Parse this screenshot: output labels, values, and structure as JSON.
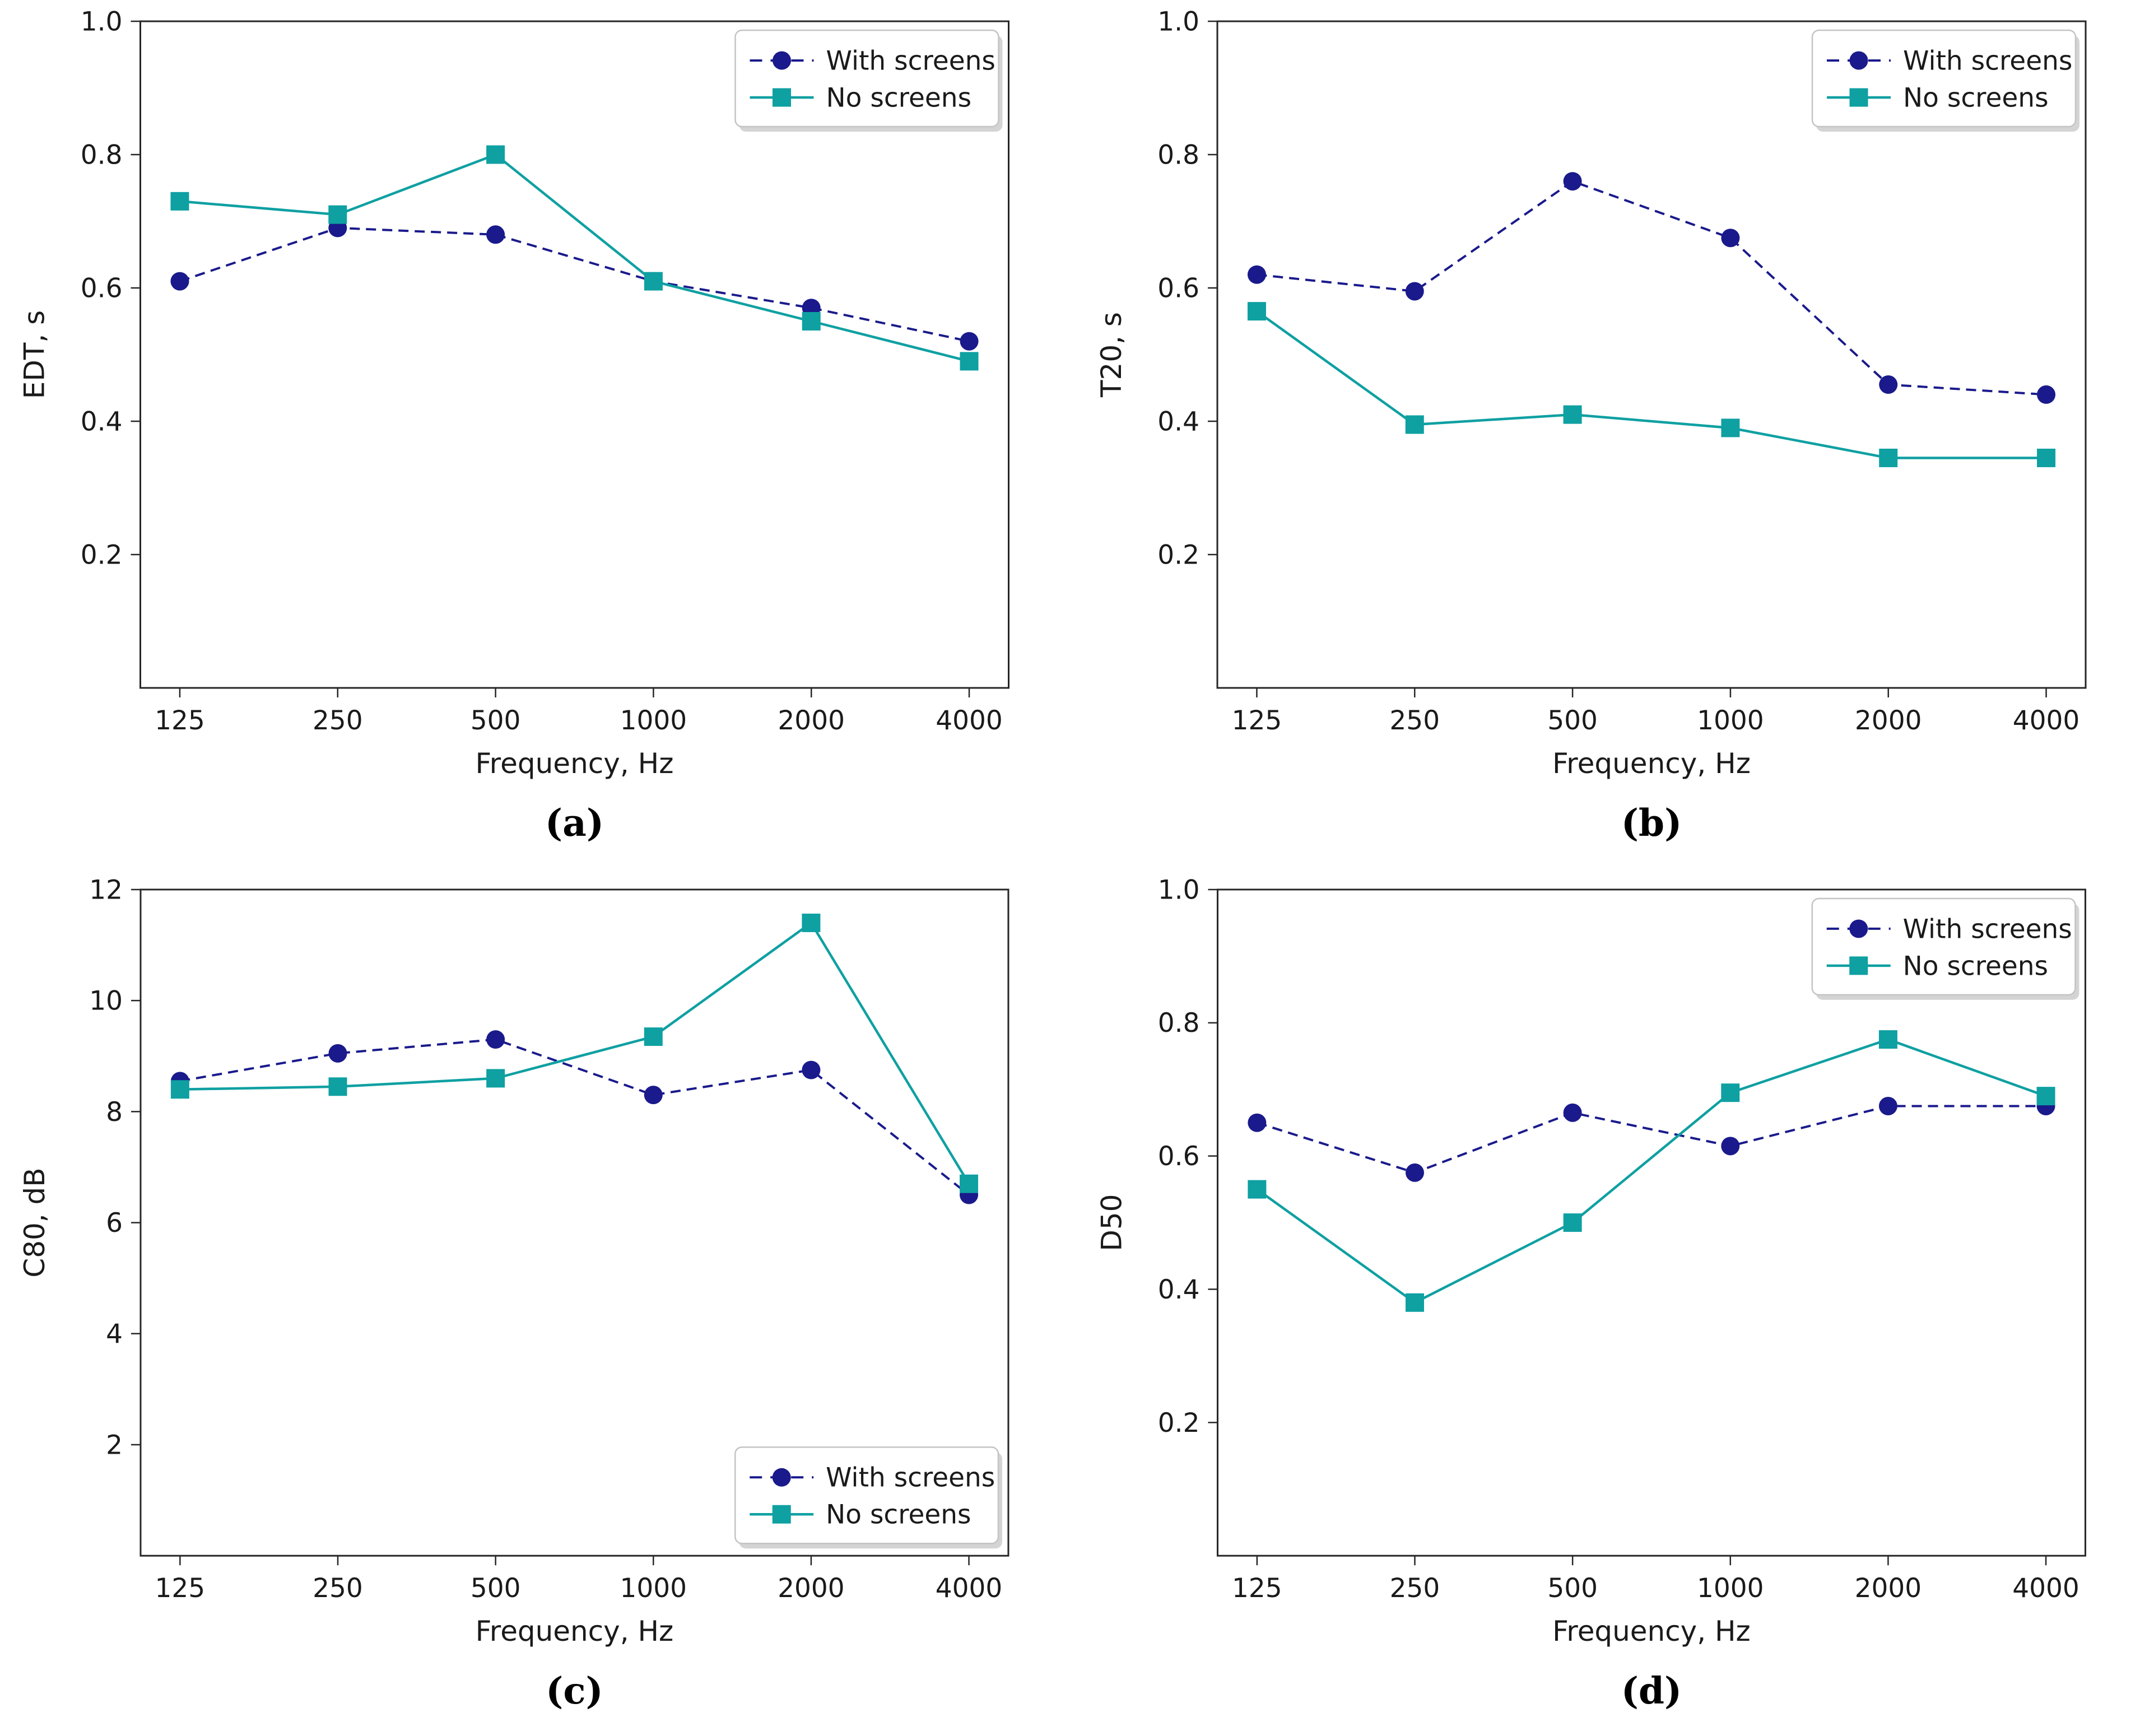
{
  "figure": {
    "background": "#ffffff",
    "description": "Four line charts comparing room-acoustic parameters with and without screens across octave-band frequencies"
  },
  "colors": {
    "with_screens": "#1a1a8c",
    "no_screens": "#0fa0a2",
    "axis": "#262626",
    "text": "#1a1a1a",
    "legend_border": "#c4c4c4",
    "legend_shadow": "#cccccc"
  },
  "legend_labels": {
    "with_screens": "With screens",
    "no_screens": "No screens"
  },
  "chart_data": [
    {
      "id": "a",
      "type": "line",
      "caption": "(a)",
      "xlabel": "Frequency, Hz",
      "ylabel": "EDT, s",
      "categories": [
        "125",
        "250",
        "500",
        "1000",
        "2000",
        "4000"
      ],
      "ylim": [
        0,
        1.0
      ],
      "yticks": [
        0.2,
        0.4,
        0.6,
        0.8,
        1.0
      ],
      "ytick_labels": [
        "0.2",
        "0.4",
        "0.6",
        "0.8",
        "1.0"
      ],
      "grid": false,
      "legend_position": "top-right",
      "series": [
        {
          "name": "With screens",
          "color_key": "with_screens",
          "line_style": "dashed",
          "marker": "circle",
          "values": [
            0.61,
            0.69,
            0.68,
            0.61,
            0.57,
            0.52
          ]
        },
        {
          "name": "No screens",
          "color_key": "no_screens",
          "line_style": "solid",
          "marker": "square",
          "values": [
            0.73,
            0.71,
            0.8,
            0.61,
            0.55,
            0.49
          ]
        }
      ]
    },
    {
      "id": "b",
      "type": "line",
      "caption": "(b)",
      "xlabel": "Frequency, Hz",
      "ylabel": "T20, s",
      "categories": [
        "125",
        "250",
        "500",
        "1000",
        "2000",
        "4000"
      ],
      "ylim": [
        0,
        1.0
      ],
      "yticks": [
        0.2,
        0.4,
        0.6,
        0.8,
        1.0
      ],
      "ytick_labels": [
        "0.2",
        "0.4",
        "0.6",
        "0.8",
        "1.0"
      ],
      "grid": false,
      "legend_position": "top-right",
      "series": [
        {
          "name": "With screens",
          "color_key": "with_screens",
          "line_style": "dashed",
          "marker": "circle",
          "values": [
            0.62,
            0.595,
            0.76,
            0.675,
            0.455,
            0.44
          ]
        },
        {
          "name": "No screens",
          "color_key": "no_screens",
          "line_style": "solid",
          "marker": "square",
          "values": [
            0.565,
            0.395,
            0.41,
            0.39,
            0.345,
            0.345
          ]
        }
      ]
    },
    {
      "id": "c",
      "type": "line",
      "caption": "(c)",
      "xlabel": "Frequency, Hz",
      "ylabel": "C80, dB",
      "categories": [
        "125",
        "250",
        "500",
        "1000",
        "2000",
        "4000"
      ],
      "ylim": [
        0,
        12
      ],
      "yticks": [
        2,
        4,
        6,
        8,
        10,
        12
      ],
      "ytick_labels": [
        "2",
        "4",
        "6",
        "8",
        "10",
        "12"
      ],
      "grid": false,
      "legend_position": "bottom-right",
      "series": [
        {
          "name": "With screens",
          "color_key": "with_screens",
          "line_style": "dashed",
          "marker": "circle",
          "values": [
            8.55,
            9.05,
            9.3,
            8.3,
            8.75,
            6.5
          ]
        },
        {
          "name": "No screens",
          "color_key": "no_screens",
          "line_style": "solid",
          "marker": "square",
          "values": [
            8.4,
            8.45,
            8.6,
            9.35,
            11.4,
            6.7
          ]
        }
      ]
    },
    {
      "id": "d",
      "type": "line",
      "caption": "(d)",
      "xlabel": "Frequency, Hz",
      "ylabel": "D50",
      "categories": [
        "125",
        "250",
        "500",
        "1000",
        "2000",
        "4000"
      ],
      "ylim": [
        0,
        1.0
      ],
      "yticks": [
        0.2,
        0.4,
        0.6,
        0.8,
        1.0
      ],
      "ytick_labels": [
        "0.2",
        "0.4",
        "0.6",
        "0.8",
        "1.0"
      ],
      "grid": false,
      "legend_position": "top-right",
      "series": [
        {
          "name": "With screens",
          "color_key": "with_screens",
          "line_style": "dashed",
          "marker": "circle",
          "values": [
            0.65,
            0.575,
            0.665,
            0.615,
            0.675,
            0.675
          ]
        },
        {
          "name": "No screens",
          "color_key": "no_screens",
          "line_style": "solid",
          "marker": "square",
          "values": [
            0.55,
            0.38,
            0.5,
            0.695,
            0.775,
            0.69
          ]
        }
      ]
    }
  ]
}
